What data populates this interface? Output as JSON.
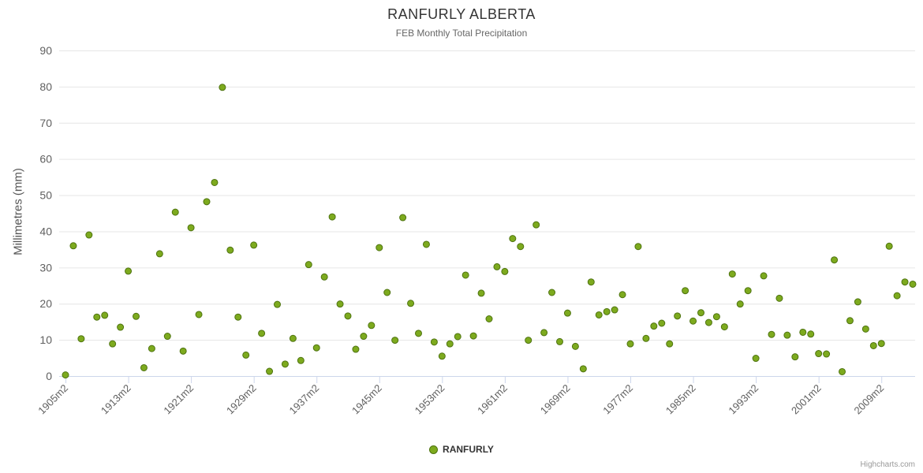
{
  "chart_data": {
    "type": "scatter",
    "title": "RANFURLY ALBERTA",
    "subtitle": "FEB Monthly Total Precipitation",
    "ylabel": "Millimetres (mm)",
    "ylim": [
      0,
      90
    ],
    "y_ticks": [
      0,
      10,
      20,
      30,
      40,
      50,
      60,
      70,
      80,
      90
    ],
    "x_tick_labels": [
      "1905m2",
      "1913m2",
      "1921m2",
      "1929m2",
      "1937m2",
      "1945m2",
      "1953m2",
      "1961m2",
      "1969m2",
      "1977m2",
      "1985m2",
      "1993m2",
      "2001m2",
      "2009m2"
    ],
    "legend_position": "bottom",
    "grid": true,
    "credits": "Highcharts.com",
    "marker_color": "#7daa1e",
    "marker_border_color": "#4e7310",
    "series": [
      {
        "name": "RANFURLY",
        "x": [
          1905,
          1906,
          1907,
          1908,
          1909,
          1910,
          1911,
          1912,
          1913,
          1914,
          1915,
          1916,
          1917,
          1918,
          1919,
          1920,
          1921,
          1922,
          1923,
          1924,
          1925,
          1926,
          1927,
          1928,
          1929,
          1930,
          1931,
          1932,
          1933,
          1934,
          1935,
          1936,
          1937,
          1938,
          1939,
          1940,
          1941,
          1942,
          1943,
          1944,
          1945,
          1946,
          1947,
          1948,
          1949,
          1950,
          1951,
          1952,
          1953,
          1954,
          1955,
          1956,
          1957,
          1958,
          1959,
          1960,
          1961,
          1962,
          1963,
          1964,
          1965,
          1966,
          1967,
          1968,
          1969,
          1970,
          1971,
          1972,
          1973,
          1974,
          1975,
          1976,
          1977,
          1978,
          1979,
          1980,
          1981,
          1982,
          1983,
          1984,
          1985,
          1986,
          1987,
          1988,
          1989,
          1990,
          1991,
          1992,
          1993,
          1994,
          1995,
          1996,
          1997,
          1998,
          1999,
          2000,
          2001,
          2002,
          2003,
          2004,
          2005,
          2006,
          2007,
          2008,
          2009,
          2010,
          2011,
          2012,
          2013
        ],
        "values": [
          0.3,
          36.0,
          10.3,
          39.0,
          16.3,
          16.8,
          8.9,
          13.5,
          29.0,
          16.5,
          2.3,
          7.6,
          33.8,
          11.0,
          45.3,
          6.9,
          41.0,
          17.0,
          48.2,
          53.5,
          79.8,
          34.8,
          16.3,
          5.8,
          36.2,
          11.8,
          1.3,
          19.8,
          3.3,
          10.4,
          4.3,
          30.8,
          7.8,
          27.4,
          44.0,
          19.9,
          16.6,
          7.4,
          11.0,
          14.0,
          35.5,
          23.1,
          9.9,
          43.8,
          20.1,
          11.8,
          36.4,
          9.4,
          5.5,
          8.9,
          10.9,
          27.9,
          11.1,
          22.9,
          15.8,
          30.2,
          28.9,
          38.0,
          35.8,
          9.9,
          41.8,
          12.0,
          23.1,
          9.5,
          17.4,
          8.2,
          2.0,
          26.0,
          16.9,
          17.8,
          18.3,
          22.5,
          8.9,
          35.8,
          10.4,
          13.8,
          14.6,
          8.9,
          16.6,
          23.6,
          15.2,
          17.5,
          14.8,
          16.4,
          13.6,
          28.2,
          19.9,
          23.6,
          4.9,
          27.7,
          11.5,
          21.5,
          11.3,
          5.3,
          12.1,
          11.6,
          6.2,
          6.1,
          32.1,
          1.2,
          15.3,
          20.5,
          13.0,
          8.4,
          9.0,
          35.9,
          22.2,
          26.0,
          25.4
        ]
      }
    ]
  }
}
